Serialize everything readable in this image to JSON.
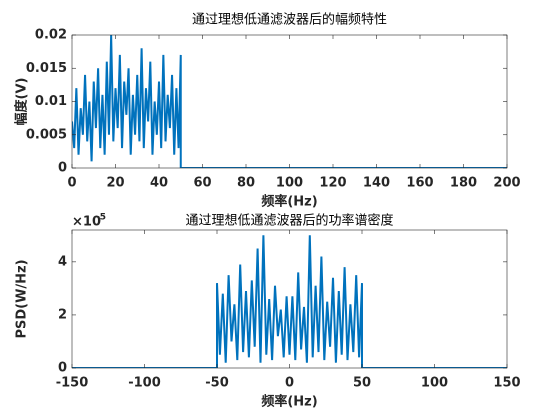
{
  "chart_data": [
    {
      "type": "line",
      "title": "通过理想低通滤波器后的幅频特性",
      "xlabel": "频率(Hz)",
      "ylabel": "幅度(V)",
      "color": "#0072bd",
      "xlim": [
        0,
        200
      ],
      "xticks": [
        0,
        20,
        40,
        60,
        80,
        100,
        120,
        140,
        160,
        180,
        200
      ],
      "ylim": [
        0,
        0.02
      ],
      "yticks": [
        0,
        0.005,
        0.01,
        0.015,
        0.02
      ],
      "x": [
        0,
        1,
        2,
        3,
        4,
        5,
        6,
        7,
        8,
        9,
        10,
        11,
        12,
        13,
        14,
        15,
        16,
        17,
        18,
        19,
        20,
        21,
        22,
        23,
        24,
        25,
        26,
        27,
        28,
        29,
        30,
        31,
        32,
        33,
        34,
        35,
        36,
        37,
        38,
        39,
        40,
        41,
        42,
        43,
        44,
        45,
        46,
        47,
        48,
        49,
        50,
        50,
        200
      ],
      "values": [
        0.007,
        0.003,
        0.012,
        0.002,
        0.009,
        0.005,
        0.014,
        0.004,
        0.01,
        0.001,
        0.013,
        0.006,
        0.015,
        0.003,
        0.011,
        0.002,
        0.016,
        0.005,
        0.02,
        0.004,
        0.012,
        0.006,
        0.017,
        0.003,
        0.013,
        0.008,
        0.015,
        0.002,
        0.011,
        0.005,
        0.014,
        0.004,
        0.018,
        0.003,
        0.012,
        0.007,
        0.016,
        0.002,
        0.01,
        0.005,
        0.013,
        0.003,
        0.017,
        0.004,
        0.011,
        0.006,
        0.014,
        0.002,
        0.012,
        0.003,
        0.017,
        0,
        0
      ]
    },
    {
      "type": "line",
      "title": "通过理想低通滤波器后的功率谱密度",
      "xlabel": "频率(Hz)",
      "ylabel": "PSD(W/Hz)",
      "color": "#0072bd",
      "y_multiplier": {
        "base": "×10",
        "exponent": "-5"
      },
      "xlim": [
        -150,
        150
      ],
      "xticks": [
        -150,
        -100,
        -50,
        0,
        50,
        100,
        150
      ],
      "ylim": [
        0,
        5.2e-05
      ],
      "yticks": [
        0,
        {
          "value": 2e-05,
          "label": "2"
        },
        {
          "value": 4e-05,
          "label": "4"
        }
      ],
      "x": [
        -150,
        -50,
        -50,
        -48,
        -46,
        -44,
        -42,
        -40,
        -38,
        -36,
        -34,
        -32,
        -30,
        -28,
        -26,
        -24,
        -22,
        -20,
        -18,
        -16,
        -14,
        -12,
        -10,
        -8,
        -6,
        -4,
        -2,
        0,
        2,
        4,
        6,
        8,
        10,
        12,
        14,
        16,
        18,
        20,
        22,
        24,
        26,
        28,
        30,
        32,
        34,
        36,
        38,
        40,
        42,
        44,
        46,
        48,
        50,
        50,
        150
      ],
      "values": [
        0,
        0,
        3.2e-05,
        5e-06,
        2.8e-05,
        2e-06,
        3.5e-05,
        1e-05,
        2.4e-05,
        3e-06,
        3.9e-05,
        6e-06,
        2.9e-05,
        4e-06,
        3.3e-05,
        8e-06,
        4.5e-05,
        2e-06,
        5e-05,
        5e-06,
        2.6e-05,
        3e-06,
        3.1e-05,
        1.2e-05,
        2.2e-05,
        4e-06,
        2.7e-05,
        5e-06,
        2.7e-05,
        3e-06,
        3.6e-05,
        7e-06,
        2.3e-05,
        2e-06,
        5e-05,
        4e-06,
        3.1e-05,
        6e-06,
        4.2e-05,
        3e-06,
        2.5e-05,
        8e-06,
        3.4e-05,
        2e-06,
        2.9e-05,
        5e-06,
        3.8e-05,
        3e-06,
        2.4e-05,
        6e-06,
        3.5e-05,
        4e-06,
        3.2e-05,
        0,
        0
      ]
    }
  ]
}
